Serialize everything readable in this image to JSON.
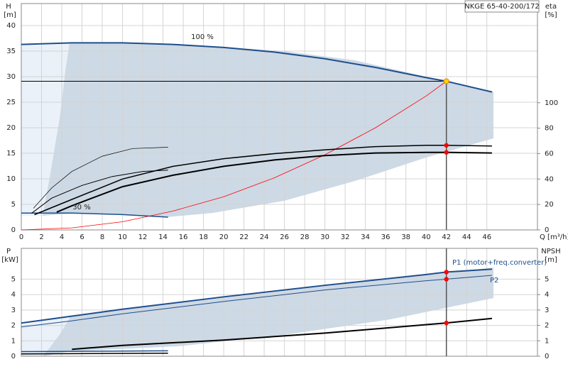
{
  "chart_data": [
    {
      "type": "line",
      "title": "NKGE 65-40-200/172",
      "xlabel": "Q [m³/h]",
      "ylabel": "H",
      "yunit": "[m]",
      "y2label": "eta",
      "y2unit": "[%]",
      "xlim": [
        0,
        51
      ],
      "xticks": [
        0,
        2,
        4,
        6,
        8,
        10,
        12,
        14,
        16,
        18,
        20,
        22,
        24,
        26,
        28,
        30,
        32,
        34,
        36,
        38,
        40,
        42,
        44,
        46
      ],
      "ylim": [
        0,
        44.3
      ],
      "yticks": [
        0,
        5,
        10,
        15,
        20,
        25,
        30,
        35,
        40
      ],
      "y2lim": [
        0,
        178
      ],
      "y2ticks": [
        0,
        20,
        40,
        60,
        80,
        100
      ],
      "grid": true,
      "annotations": [
        "100 %",
        "30 %"
      ],
      "duty_point": {
        "x": 42,
        "y": 29.1,
        "color": "#ffd700"
      },
      "series": [
        {
          "x": [
            0,
            5,
            10,
            15,
            20,
            25,
            30,
            35,
            40,
            42,
            46.5
          ],
          "values": [
            36.3,
            36.6,
            36.6,
            36.3,
            35.7,
            34.8,
            33.5,
            31.8,
            29.8,
            29.1,
            27
          ],
          "color": "#1f4e8c",
          "width": 2
        },
        {
          "x": [
            0,
            5,
            10,
            14.5
          ],
          "values": [
            3.3,
            3.3,
            3.0,
            2.5
          ],
          "color": "#1f4e8c",
          "width": 1.5
        },
        {
          "x": [
            0,
            5,
            10,
            15,
            20,
            25,
            30,
            35,
            40,
            42
          ],
          "values": [
            0,
            0.4,
            1.6,
            3.7,
            6.5,
            10.2,
            14.7,
            20,
            26.2,
            29.1
          ],
          "color": "#ff0000",
          "width": 0.8
        },
        {
          "x": [
            1.3,
            5,
            10,
            15,
            20,
            25,
            30,
            35,
            40,
            42,
            46.5
          ],
          "values": [
            12,
            24,
            40,
            50,
            56,
            60,
            63,
            65.5,
            66.5,
            66.5,
            66
          ],
          "color": "#000000",
          "width": 1.5,
          "axis": "y2",
          "dot_color": "#ff0000"
        },
        {
          "x": [
            3.5,
            5,
            10,
            15,
            20,
            25,
            30,
            35,
            40,
            42,
            46.5
          ],
          "values": [
            14,
            19,
            34,
            43,
            50,
            55,
            58.5,
            60.5,
            61,
            61,
            60.5
          ],
          "color": "#000000",
          "width": 2,
          "axis": "y2",
          "dot_color": "#ff0000"
        },
        {
          "x": [
            1.2,
            3,
            5,
            8,
            11,
            14.5
          ],
          "values": [
            17,
            33,
            46,
            58,
            64,
            65
          ],
          "color": "#000000",
          "width": 0.7,
          "axis": "y2"
        },
        {
          "x": [
            1,
            3,
            6,
            9,
            12,
            14.5
          ],
          "values": [
            13,
            25,
            35,
            42,
            46,
            47
          ],
          "color": "#000000",
          "width": 1,
          "axis": "y2"
        }
      ]
    },
    {
      "type": "line",
      "ylabel": "P",
      "yunit": "[kW]",
      "y2label": "NPSH",
      "y2unit": "[m]",
      "xlim": [
        0,
        51
      ],
      "xticks": [
        0,
        2,
        4,
        6,
        8,
        10,
        12,
        14,
        16,
        18,
        20,
        22,
        24,
        26,
        28,
        30,
        32,
        34,
        36,
        38,
        40,
        42,
        44,
        46
      ],
      "x_tick_labels": false,
      "ylim": [
        0,
        7
      ],
      "yticks": [
        0,
        1,
        2,
        3,
        4,
        5
      ],
      "y2lim": [
        0,
        7
      ],
      "y2ticks": [
        0,
        1,
        2,
        3,
        4,
        5
      ],
      "grid": true,
      "duty_point": {
        "x": 42
      },
      "series": [
        {
          "name": "P1 (motor+freq.converter)",
          "x": [
            0,
            5,
            10,
            20,
            30,
            40,
            42,
            46.5
          ],
          "values": [
            2.15,
            2.6,
            3.05,
            3.85,
            4.6,
            5.3,
            5.46,
            5.65
          ],
          "color": "#1f4e8c",
          "width": 2,
          "dot_color": "#ff0000"
        },
        {
          "name": "P2",
          "x": [
            0,
            5,
            10,
            20,
            30,
            40,
            42,
            46.5
          ],
          "values": [
            1.9,
            2.3,
            2.75,
            3.55,
            4.3,
            4.9,
            5.0,
            5.25
          ],
          "color": "#1f4e8c",
          "width": 1,
          "dot_color": "#ff0000"
        },
        {
          "x": [
            0,
            14.5
          ],
          "values": [
            0.3,
            0.35
          ],
          "color": "#1f4e8c",
          "width": 1.5
        },
        {
          "x": [
            0,
            14.5
          ],
          "values": [
            0.15,
            0.2
          ],
          "color": "#000000",
          "width": 1.5
        },
        {
          "x": [
            5,
            10,
            20,
            30,
            40,
            42,
            46.5
          ],
          "values": [
            0.45,
            0.7,
            1.05,
            1.5,
            2.05,
            2.16,
            2.45
          ],
          "color": "#000000",
          "width": 2,
          "axis": "y2",
          "dot_color": "#ff0000"
        }
      ]
    }
  ]
}
